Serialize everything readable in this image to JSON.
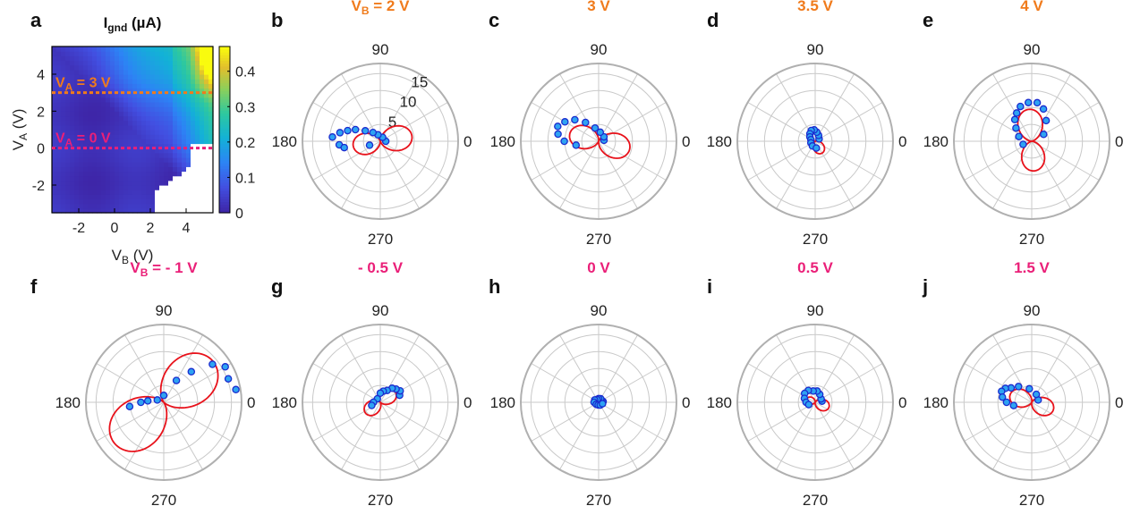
{
  "colors": {
    "orange": "#f07b1c",
    "magenta": "#ea1f78",
    "curve": "#e8121b",
    "marker_fill": "#2ea3f2",
    "marker_edge": "#1b2ccf",
    "grid": "#c9c9c9"
  },
  "chart_data": [
    {
      "panel": "a",
      "type": "heatmap",
      "title": "I_gnd (µA)",
      "title_main": "I",
      "title_sub": "gnd",
      "title_tail": " (µA)",
      "xlabel_main": "V",
      "xlabel_sub": "B",
      "xlabel_tail": " (V)",
      "ylabel_main": "V",
      "ylabel_sub": "A",
      "ylabel_tail": " (V)",
      "xlim": [
        -3.5,
        5.5
      ],
      "ylim": [
        -3.5,
        5.5
      ],
      "xticks": [
        "-2",
        "0",
        "2",
        "4"
      ],
      "xtick_values": [
        -2,
        0,
        2,
        4
      ],
      "yticks": [
        "4",
        "2",
        "0",
        "-2"
      ],
      "ytick_values": [
        4,
        2,
        0,
        -2
      ],
      "colorbar_ticks": [
        "0.4",
        "0.3",
        "0.2",
        "0.1",
        "0"
      ],
      "colorbar_values": [
        0.4,
        0.3,
        0.2,
        0.1,
        0
      ],
      "colorbar_range": [
        0,
        0.47
      ],
      "annotations": [
        {
          "text_main": "V",
          "text_sub": "A",
          "text_tail": " = 3 V",
          "y": 3,
          "color": "orange"
        },
        {
          "text_main": "V",
          "text_sub": "A",
          "text_tail": " = 0 V",
          "y": 0,
          "color": "magenta"
        }
      ]
    },
    {
      "type": "polar",
      "radial_ticks": [
        "15",
        "10",
        "5"
      ],
      "radial_tick_values": [
        15,
        10,
        5
      ],
      "rmax": 17,
      "angle_labels": {
        "top": "90",
        "left": "180",
        "right": "0",
        "bottom": "270"
      },
      "panels": [
        {
          "id": "b",
          "label_main": "V",
          "label_sub": "B",
          "label_tail": " = 2 V",
          "color": "orange",
          "show_radial": true,
          "lobe1": {
            "dir": 10,
            "amp": 7.0
          },
          "lobe2": {
            "dir": 190,
            "amp": 6.0
          },
          "points": [
            [
              0,
              1.2
            ],
            [
              60,
              1.0
            ],
            [
              110,
              1.5
            ],
            [
              130,
              2.5
            ],
            [
              145,
              4.0
            ],
            [
              155,
              6.0
            ],
            [
              162,
              7.5
            ],
            [
              168,
              9.0
            ],
            [
              175,
              10.5
            ],
            [
              185,
              9.0
            ],
            [
              190,
              8.0
            ],
            [
              200,
              2.5
            ]
          ]
        },
        {
          "id": "c",
          "label_main": "3 V",
          "label_sub": "",
          "label_tail": "",
          "color": "orange",
          "show_radial": false,
          "lobe1": {
            "dir": 345,
            "amp": 7.0
          },
          "lobe2": {
            "dir": 165,
            "amp": 6.5
          },
          "points": [
            [
              10,
              1.2
            ],
            [
              40,
              1.5
            ],
            [
              80,
              2.0
            ],
            [
              105,
              3.0
            ],
            [
              125,
              5.0
            ],
            [
              138,
              7.0
            ],
            [
              150,
              8.5
            ],
            [
              160,
              9.5
            ],
            [
              170,
              9.0
            ],
            [
              180,
              7.5
            ],
            [
              190,
              5.0
            ]
          ]
        },
        {
          "id": "d",
          "label_main": "3.5 V",
          "label_sub": "",
          "label_tail": "",
          "color": "orange",
          "show_radial": false,
          "lobe1": {
            "dir": 300,
            "amp": 3.0
          },
          "lobe2": {
            "dir": 110,
            "amp": 2.5
          },
          "points": [
            [
              30,
              1.0
            ],
            [
              60,
              1.5
            ],
            [
              80,
              2.0
            ],
            [
              95,
              2.5
            ],
            [
              110,
              2.5
            ],
            [
              125,
              2.0
            ],
            [
              140,
              1.5
            ],
            [
              160,
              1.0
            ],
            [
              200,
              1.0
            ],
            [
              240,
              1.2
            ],
            [
              280,
              1.5
            ]
          ]
        },
        {
          "id": "e",
          "label_main": "4 V",
          "label_sub": "",
          "label_tail": "",
          "color": "orange",
          "show_radial": false,
          "lobe1": {
            "dir": 275,
            "amp": 6.5
          },
          "lobe2": {
            "dir": 95,
            "amp": 7.0
          },
          "points": [
            [
              30,
              3.0
            ],
            [
              55,
              5.5
            ],
            [
              70,
              7.5
            ],
            [
              82,
              8.5
            ],
            [
              95,
              8.5
            ],
            [
              108,
              8.0
            ],
            [
              118,
              7.0
            ],
            [
              128,
              6.0
            ],
            [
              140,
              4.5
            ],
            [
              160,
              3.0
            ],
            [
              200,
              2.0
            ]
          ]
        },
        {
          "id": "f",
          "label_main": "V",
          "label_sub": "B",
          "label_tail": " = - 1 V",
          "color": "magenta",
          "show_radial": false,
          "lobe1": {
            "dir": 40,
            "amp": 14.0
          },
          "lobe2": {
            "dir": 220,
            "amp": 14.0
          },
          "points": [
            [
              10,
              16.0
            ],
            [
              20,
              15.0
            ],
            [
              30,
              15.5
            ],
            [
              38,
              13.5
            ],
            [
              48,
              9.0
            ],
            [
              60,
              5.5
            ],
            [
              90,
              1.5
            ],
            [
              160,
              1.5
            ],
            [
              175,
              3.5
            ],
            [
              180,
              5.0
            ],
            [
              187,
              7.5
            ]
          ]
        },
        {
          "id": "g",
          "label_main": "- 0.5 V",
          "label_sub": "",
          "label_tail": "",
          "color": "magenta",
          "show_radial": false,
          "lobe1": {
            "dir": 35,
            "amp": 4.0
          },
          "lobe2": {
            "dir": 215,
            "amp": 4.0
          },
          "points": [
            [
              20,
              4.5
            ],
            [
              30,
              5.0
            ],
            [
              40,
              4.5
            ],
            [
              50,
              4.0
            ],
            [
              60,
              3.0
            ],
            [
              75,
              2.5
            ],
            [
              90,
              2.0
            ],
            [
              130,
              1.0
            ],
            [
              180,
              1.5
            ],
            [
              200,
              2.0
            ]
          ]
        },
        {
          "id": "h",
          "label_main": "0 V",
          "label_sub": "",
          "label_tail": "",
          "color": "magenta",
          "show_radial": false,
          "lobe1": {
            "dir": 350,
            "amp": 1.5
          },
          "lobe2": {
            "dir": 170,
            "amp": 1.2
          },
          "points": [
            [
              10,
              1.0
            ],
            [
              30,
              0.8
            ],
            [
              60,
              0.9
            ],
            [
              90,
              0.8
            ],
            [
              120,
              0.7
            ],
            [
              150,
              1.0
            ],
            [
              180,
              1.0
            ],
            [
              220,
              0.7
            ],
            [
              260,
              0.6
            ],
            [
              300,
              0.7
            ],
            [
              340,
              0.9
            ]
          ]
        },
        {
          "id": "i",
          "label_main": "0.5 V",
          "label_sub": "",
          "label_tail": "",
          "color": "magenta",
          "show_radial": false,
          "lobe1": {
            "dir": 340,
            "amp": 3.2
          },
          "lobe2": {
            "dir": 160,
            "amp": 2.0
          },
          "points": [
            [
              10,
              1.5
            ],
            [
              30,
              1.5
            ],
            [
              60,
              2.0
            ],
            [
              80,
              2.5
            ],
            [
              100,
              2.5
            ],
            [
              120,
              3.0
            ],
            [
              140,
              3.0
            ],
            [
              160,
              2.5
            ],
            [
              180,
              2.0
            ],
            [
              200,
              1.5
            ]
          ]
        },
        {
          "id": "j",
          "label_main": "1.5 V",
          "label_sub": "",
          "label_tail": "",
          "color": "magenta",
          "show_radial": false,
          "lobe1": {
            "dir": 340,
            "amp": 5.0
          },
          "lobe2": {
            "dir": 160,
            "amp": 5.0
          },
          "points": [
            [
              20,
              1.5
            ],
            [
              60,
              2.0
            ],
            [
              100,
              3.0
            ],
            [
              130,
              4.5
            ],
            [
              145,
              5.5
            ],
            [
              152,
              6.5
            ],
            [
              160,
              7.0
            ],
            [
              170,
              6.5
            ],
            [
              180,
              5.5
            ],
            [
              190,
              4.0
            ]
          ]
        }
      ]
    }
  ]
}
